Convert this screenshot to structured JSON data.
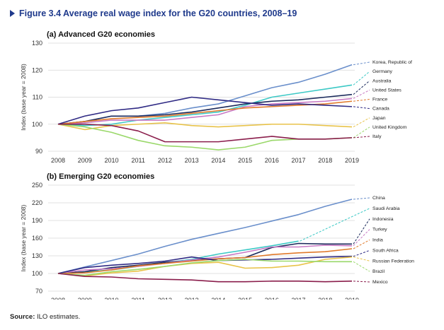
{
  "figure": {
    "title": "Figure 3.4  Average real wage index for the G20 countries, 2008–19",
    "source_label": "Source:",
    "source_text": " ILO estimates."
  },
  "chart_data": [
    {
      "type": "line",
      "title": "(a) Advanced G20 economies",
      "ylabel": "Index (base year = 2008)",
      "x": [
        2008,
        2009,
        2010,
        2011,
        2012,
        2013,
        2014,
        2015,
        2016,
        2017,
        2018,
        2019
      ],
      "ylim": [
        90,
        130
      ],
      "yticks": [
        90,
        100,
        110,
        120,
        130
      ],
      "grid": true,
      "legend_placement": "right",
      "series": [
        {
          "name": "Korea, Republic of",
          "color": "#6a8fcb",
          "values": [
            100,
            101,
            103,
            103,
            104,
            106,
            107.5,
            110.5,
            113.5,
            115.5,
            118.5,
            122
          ]
        },
        {
          "name": "Germany",
          "color": "#3dc9c6",
          "values": [
            100,
            99.5,
            100,
            101.5,
            102.5,
            103.5,
            104.5,
            107,
            110,
            111.5,
            113,
            114.5
          ]
        },
        {
          "name": "Australia",
          "color": "#1b2a5c",
          "values": [
            100,
            101,
            103,
            103,
            103.5,
            104.5,
            106,
            107.5,
            108.5,
            109,
            110,
            111
          ]
        },
        {
          "name": "United States",
          "color": "#c879c4",
          "values": [
            100,
            100.5,
            101.5,
            101.5,
            101.5,
            102.5,
            103.5,
            106.5,
            107.5,
            108,
            108.5,
            109.5
          ]
        },
        {
          "name": "France",
          "color": "#e07a2b",
          "values": [
            100,
            101,
            102,
            102.5,
            103,
            104,
            105,
            106,
            106.5,
            107,
            107.5,
            108.5
          ]
        },
        {
          "name": "Canada",
          "color": "#2f2a84",
          "values": [
            100,
            103,
            105,
            106,
            108,
            110,
            109,
            108,
            107,
            107.5,
            107,
            106.5
          ]
        },
        {
          "name": "Japan",
          "color": "#e8c34a",
          "values": [
            100,
            98,
            99.5,
            100,
            100.5,
            99.5,
            99,
            99.5,
            100,
            100,
            99.5,
            99
          ]
        },
        {
          "name": "United Kingdom",
          "color": "#9ad86a",
          "values": [
            100,
            99,
            97,
            94,
            92,
            91.5,
            90.5,
            91.5,
            94,
            94.5,
            94.5,
            95
          ]
        },
        {
          "name": "Italy",
          "color": "#8a1d4b",
          "values": [
            100,
            100,
            99.5,
            97.5,
            93.5,
            93.5,
            93.5,
            94.5,
            95.5,
            94.5,
            94.5,
            95
          ]
        }
      ]
    },
    {
      "type": "line",
      "title": "(b) Emerging G20 economies",
      "ylabel": "Index (base year = 2008)",
      "x": [
        2008,
        2009,
        2010,
        2011,
        2012,
        2013,
        2014,
        2015,
        2016,
        2017,
        2018,
        2019
      ],
      "ylim": [
        70,
        250
      ],
      "yticks": [
        70,
        100,
        130,
        160,
        190,
        220,
        250
      ],
      "grid": true,
      "legend_placement": "right",
      "series": [
        {
          "name": "China",
          "color": "#6a8fcb",
          "values": [
            100,
            111,
            122,
            133,
            146,
            158,
            168,
            178,
            189,
            200,
            214,
            226
          ]
        },
        {
          "name": "Saudi Arabia",
          "color": "#3dc9c6",
          "values": [
            100,
            103,
            106,
            112,
            118,
            124,
            133,
            140,
            147,
            155,
            null,
            null
          ]
        },
        {
          "name": "Indonesia",
          "color": "#1b2a5c",
          "values": [
            100,
            103,
            110,
            114,
            119,
            122,
            125,
            127,
            144,
            151,
            150,
            150
          ]
        },
        {
          "name": "Turkey",
          "color": "#c879c4",
          "values": [
            100,
            106,
            108,
            112,
            117,
            123,
            128,
            136,
            145,
            145,
            148,
            147
          ]
        },
        {
          "name": "India",
          "color": "#e07a2b",
          "values": [
            100,
            101,
            106,
            113,
            117,
            121,
            125,
            127,
            132,
            135,
            137,
            142
          ]
        },
        {
          "name": "South Africa",
          "color": "#2f2a84",
          "values": [
            100,
            110,
            114,
            117,
            121,
            128,
            122,
            123,
            124,
            126,
            128,
            129
          ]
        },
        {
          "name": "Russian Federation",
          "color": "#e8c34a",
          "values": [
            100,
            96,
            101,
            104,
            112,
            117,
            119,
            109,
            110,
            114,
            124,
            128
          ]
        },
        {
          "name": "Brazil",
          "color": "#9ad86a",
          "values": [
            100,
            97,
            103,
            107,
            112,
            118,
            122,
            124,
            121,
            121,
            120,
            120
          ]
        },
        {
          "name": "Mexico",
          "color": "#8a1d4b",
          "values": [
            100,
            95,
            94,
            91,
            90,
            89,
            86,
            86,
            87,
            87,
            86,
            87
          ]
        }
      ]
    }
  ]
}
